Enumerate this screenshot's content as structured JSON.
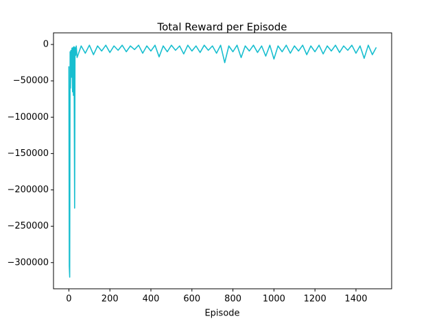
{
  "chart_data": {
    "type": "line",
    "title": "Total Reward per Episode",
    "x_label": "Episode",
    "x": [
      0,
      2,
      4,
      6,
      8,
      10,
      12,
      15,
      18,
      20,
      22,
      25,
      28,
      30,
      33,
      36,
      40,
      60,
      80,
      100,
      120,
      140,
      160,
      180,
      200,
      220,
      240,
      260,
      280,
      300,
      320,
      340,
      360,
      380,
      400,
      420,
      440,
      460,
      480,
      500,
      520,
      540,
      560,
      580,
      600,
      620,
      640,
      660,
      680,
      700,
      720,
      740,
      760,
      780,
      800,
      820,
      840,
      860,
      880,
      900,
      920,
      940,
      960,
      980,
      1000,
      1020,
      1040,
      1060,
      1080,
      1100,
      1120,
      1140,
      1160,
      1180,
      1200,
      1220,
      1240,
      1260,
      1280,
      1300,
      1320,
      1340,
      1360,
      1380,
      1400,
      1420,
      1440,
      1460,
      1480,
      1499
    ],
    "series": [
      {
        "name": "Total Reward",
        "color": "#17becf",
        "values": [
          -30000,
          -305000,
          -320000,
          -10000,
          -60000,
          -8000,
          -45000,
          -5000,
          -65000,
          -4000,
          -70000,
          -3000,
          -225000,
          -4000,
          -15000,
          -2000,
          -18000,
          -2000,
          -12000,
          -1000,
          -14000,
          -2000,
          -9000,
          -1000,
          -11000,
          -2000,
          -8000,
          -1000,
          -10000,
          -2000,
          -7000,
          -1000,
          -12000,
          -2000,
          -9000,
          -1000,
          -17000,
          -2000,
          -10000,
          -1000,
          -8000,
          -2000,
          -13000,
          -1000,
          -9000,
          -2000,
          -11000,
          -1000,
          -8000,
          -2000,
          -12000,
          -1000,
          -25000,
          -2000,
          -10000,
          -1000,
          -18000,
          -2000,
          -9000,
          -1000,
          -11000,
          -2000,
          -16000,
          -1000,
          -20000,
          -2000,
          -10000,
          -1000,
          -12000,
          -2000,
          -9000,
          -1000,
          -14000,
          -2000,
          -10000,
          -1000,
          -13000,
          -2000,
          -9000,
          -1000,
          -11000,
          -2000,
          -8000,
          -1000,
          -12000,
          -2000,
          -19000,
          -1000,
          -14000,
          -4000
        ]
      }
    ],
    "xlim": [
      -75,
      1574
    ],
    "ylim": [
      -336000,
      16000
    ],
    "xticks": [
      0,
      200,
      400,
      600,
      800,
      1000,
      1200,
      1400
    ],
    "yticks": [
      0,
      {
        "value": -50000,
        "label": "−50000"
      },
      {
        "value": -100000,
        "label": "−100000"
      },
      {
        "value": -150000,
        "label": "−150000"
      },
      {
        "value": -200000,
        "label": "−200000"
      },
      {
        "value": -250000,
        "label": "−250000"
      },
      {
        "value": -300000,
        "label": "−300000"
      }
    ]
  }
}
